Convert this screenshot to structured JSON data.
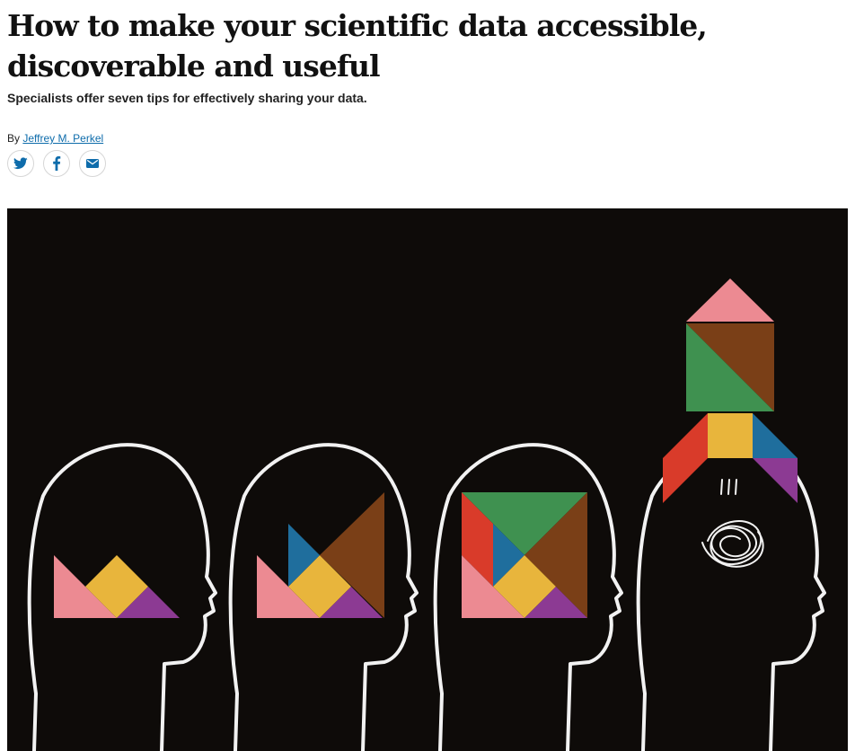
{
  "article": {
    "title": "How to make your scientific data accessible, discoverable and useful",
    "standfirst": "Specialists offer seven tips for effectively sharing your data.",
    "byline_prefix": "By",
    "author": "Jeffrey M. Perkel"
  },
  "share": {
    "buttons": [
      {
        "icon": "twitter-icon"
      },
      {
        "icon": "facebook-icon"
      },
      {
        "icon": "email-icon"
      }
    ]
  },
  "hero": {
    "description_hidden": true,
    "colors": {
      "background": "#0e0b09",
      "pink": "#ec8a92",
      "yellow": "#e8b53c",
      "purple": "#8c3a93",
      "blue": "#1f6e9d",
      "brown": "#7a3f17",
      "green": "#3f9150",
      "red": "#d93b2a",
      "chalk": "#f2f2f2"
    }
  }
}
